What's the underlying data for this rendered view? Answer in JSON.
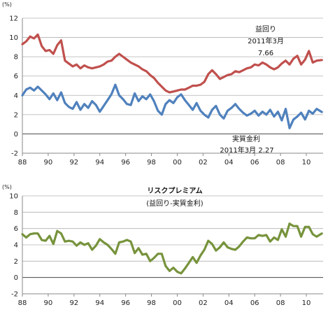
{
  "chart_data": [
    {
      "type": "line",
      "unit_label": "(%)",
      "ylim": [
        -2,
        12
      ],
      "yticks": [
        -2,
        0,
        2,
        4,
        6,
        8,
        10,
        12
      ],
      "xlim": [
        1988,
        2011.3
      ],
      "xticks": [
        1988,
        1990,
        1992,
        1994,
        1996,
        1998,
        2000,
        2002,
        2004,
        2006,
        2008,
        2010
      ],
      "xtick_labels": [
        "88",
        "90",
        "92",
        "94",
        "96",
        "98",
        "00",
        "02",
        "04",
        "06",
        "08",
        "10"
      ],
      "annotations": [
        {
          "lines": [
            "益回り",
            "2011年3月",
            "7.66"
          ]
        },
        {
          "lines": [
            "実質金利",
            "2011年3月  2.27"
          ]
        }
      ],
      "series": [
        {
          "color": "#c0504d",
          "x": [
            1988.0,
            1988.3,
            1988.6,
            1988.9,
            1989.2,
            1989.5,
            1989.8,
            1990.1,
            1990.4,
            1990.7,
            1991.0,
            1991.3,
            1991.6,
            1991.9,
            1992.2,
            1992.5,
            1992.8,
            1993.1,
            1993.4,
            1993.7,
            1994.0,
            1994.3,
            1994.6,
            1994.9,
            1995.2,
            1995.5,
            1995.8,
            1996.1,
            1996.4,
            1996.7,
            1997.0,
            1997.3,
            1997.6,
            1997.9,
            1998.2,
            1998.5,
            1998.8,
            1999.1,
            1999.4,
            1999.7,
            2000.0,
            2000.3,
            2000.6,
            2000.9,
            2001.2,
            2001.5,
            2001.8,
            2002.1,
            2002.4,
            2002.7,
            2003.0,
            2003.3,
            2003.6,
            2003.9,
            2004.2,
            2004.5,
            2004.8,
            2005.1,
            2005.4,
            2005.7,
            2006.0,
            2006.3,
            2006.6,
            2006.9,
            2007.2,
            2007.5,
            2007.8,
            2008.1,
            2008.4,
            2008.7,
            2009.0,
            2009.3,
            2009.6,
            2009.9,
            2010.2,
            2010.5,
            2010.8,
            2011.2
          ],
          "y": [
            9.3,
            9.6,
            10.1,
            9.9,
            10.3,
            9.1,
            8.6,
            8.7,
            8.3,
            9.2,
            9.7,
            7.6,
            7.3,
            7.0,
            7.2,
            6.8,
            7.1,
            6.9,
            6.8,
            6.9,
            7.0,
            7.2,
            7.5,
            7.6,
            8.0,
            8.3,
            8.0,
            7.7,
            7.4,
            7.2,
            7.0,
            6.7,
            6.5,
            6.1,
            5.8,
            5.3,
            4.9,
            4.5,
            4.3,
            4.4,
            4.5,
            4.6,
            4.6,
            4.8,
            5.0,
            5.0,
            5.1,
            5.4,
            6.2,
            6.6,
            6.2,
            5.7,
            5.9,
            6.1,
            6.2,
            6.5,
            6.4,
            6.6,
            6.8,
            6.9,
            7.2,
            7.1,
            7.4,
            7.2,
            6.9,
            6.7,
            6.9,
            7.3,
            7.6,
            7.2,
            7.8,
            8.1,
            7.2,
            7.7,
            8.6,
            7.4,
            7.6,
            7.66
          ]
        },
        {
          "color": "#4f81bd",
          "x": [
            1988.0,
            1988.3,
            1988.6,
            1988.9,
            1989.2,
            1989.5,
            1989.8,
            1990.1,
            1990.4,
            1990.7,
            1991.0,
            1991.3,
            1991.6,
            1991.9,
            1992.2,
            1992.5,
            1992.8,
            1993.1,
            1993.4,
            1993.7,
            1994.0,
            1994.3,
            1994.6,
            1994.9,
            1995.2,
            1995.5,
            1995.8,
            1996.1,
            1996.4,
            1996.7,
            1997.0,
            1997.3,
            1997.6,
            1997.9,
            1998.2,
            1998.5,
            1998.8,
            1999.1,
            1999.4,
            1999.7,
            2000.0,
            2000.3,
            2000.6,
            2000.9,
            2001.2,
            2001.5,
            2001.8,
            2002.1,
            2002.4,
            2002.7,
            2003.0,
            2003.3,
            2003.6,
            2003.9,
            2004.2,
            2004.5,
            2004.8,
            2005.1,
            2005.4,
            2005.7,
            2006.0,
            2006.3,
            2006.6,
            2006.9,
            2007.2,
            2007.5,
            2007.8,
            2008.1,
            2008.4,
            2008.7,
            2009.0,
            2009.3,
            2009.6,
            2009.9,
            2010.2,
            2010.5,
            2010.8,
            2011.2
          ],
          "y": [
            4.0,
            4.6,
            4.8,
            4.5,
            4.9,
            4.5,
            4.1,
            3.6,
            4.2,
            3.5,
            4.3,
            3.2,
            2.8,
            2.6,
            3.3,
            2.5,
            3.1,
            2.7,
            3.4,
            3.0,
            2.3,
            2.9,
            3.5,
            4.1,
            5.1,
            4.0,
            3.6,
            3.1,
            3.0,
            4.2,
            3.4,
            3.9,
            3.6,
            4.1,
            3.4,
            2.4,
            2.0,
            3.1,
            3.5,
            3.2,
            3.8,
            4.1,
            3.5,
            3.0,
            2.5,
            3.2,
            2.4,
            2.0,
            1.7,
            2.5,
            2.9,
            2.0,
            1.6,
            2.4,
            2.7,
            3.1,
            2.6,
            2.2,
            1.9,
            2.1,
            2.4,
            1.9,
            2.3,
            2.0,
            2.5,
            1.8,
            2.3,
            1.4,
            2.6,
            0.6,
            1.5,
            1.8,
            2.2,
            1.5,
            2.4,
            2.1,
            2.6,
            2.27
          ]
        }
      ]
    },
    {
      "type": "line",
      "title": "リスクプレミアム",
      "subtitle": "(益回り-実質金利)",
      "unit_label": "(%)",
      "ylim": [
        -2,
        10
      ],
      "yticks": [
        -2,
        0,
        2,
        4,
        6,
        8,
        10
      ],
      "xlim": [
        1988,
        2011.3
      ],
      "xticks": [
        1988,
        1990,
        1992,
        1994,
        1996,
        1998,
        2000,
        2002,
        2004,
        2006,
        2008,
        2010
      ],
      "xtick_labels": [
        "88",
        "90",
        "92",
        "94",
        "96",
        "98",
        "00",
        "02",
        "04",
        "06",
        "08",
        "10"
      ],
      "series": [
        {
          "color": "#77933c",
          "x": [
            1988.0,
            1988.3,
            1988.6,
            1988.9,
            1989.2,
            1989.5,
            1989.8,
            1990.1,
            1990.4,
            1990.7,
            1991.0,
            1991.3,
            1991.6,
            1991.9,
            1992.2,
            1992.5,
            1992.8,
            1993.1,
            1993.4,
            1993.7,
            1994.0,
            1994.3,
            1994.6,
            1994.9,
            1995.2,
            1995.5,
            1995.8,
            1996.1,
            1996.4,
            1996.7,
            1997.0,
            1997.3,
            1997.6,
            1997.9,
            1998.2,
            1998.5,
            1998.8,
            1999.1,
            1999.4,
            1999.7,
            2000.0,
            2000.3,
            2000.6,
            2000.9,
            2001.2,
            2001.5,
            2001.8,
            2002.1,
            2002.4,
            2002.7,
            2003.0,
            2003.3,
            2003.6,
            2003.9,
            2004.2,
            2004.5,
            2004.8,
            2005.1,
            2005.4,
            2005.7,
            2006.0,
            2006.3,
            2006.6,
            2006.9,
            2007.2,
            2007.5,
            2007.8,
            2008.1,
            2008.4,
            2008.7,
            2009.0,
            2009.3,
            2009.6,
            2009.9,
            2010.2,
            2010.5,
            2010.8,
            2011.2
          ],
          "y": [
            5.3,
            4.9,
            5.3,
            5.4,
            5.4,
            4.6,
            4.5,
            5.1,
            4.1,
            5.7,
            5.4,
            4.4,
            4.5,
            4.4,
            3.9,
            4.3,
            4.0,
            4.2,
            3.4,
            3.9,
            4.7,
            4.3,
            4.0,
            3.5,
            2.9,
            4.3,
            4.4,
            4.6,
            4.4,
            3.0,
            3.6,
            2.8,
            2.9,
            2.0,
            2.4,
            2.9,
            2.9,
            1.4,
            0.8,
            1.2,
            0.7,
            0.5,
            1.1,
            1.8,
            2.5,
            1.8,
            2.7,
            3.4,
            4.5,
            4.1,
            3.3,
            3.7,
            4.3,
            3.7,
            3.5,
            3.4,
            3.8,
            4.4,
            4.9,
            4.8,
            4.8,
            5.2,
            5.1,
            5.2,
            4.4,
            4.9,
            4.6,
            5.9,
            5.0,
            6.6,
            6.3,
            6.3,
            5.0,
            6.2,
            6.2,
            5.3,
            5.0,
            5.39
          ]
        }
      ]
    }
  ]
}
